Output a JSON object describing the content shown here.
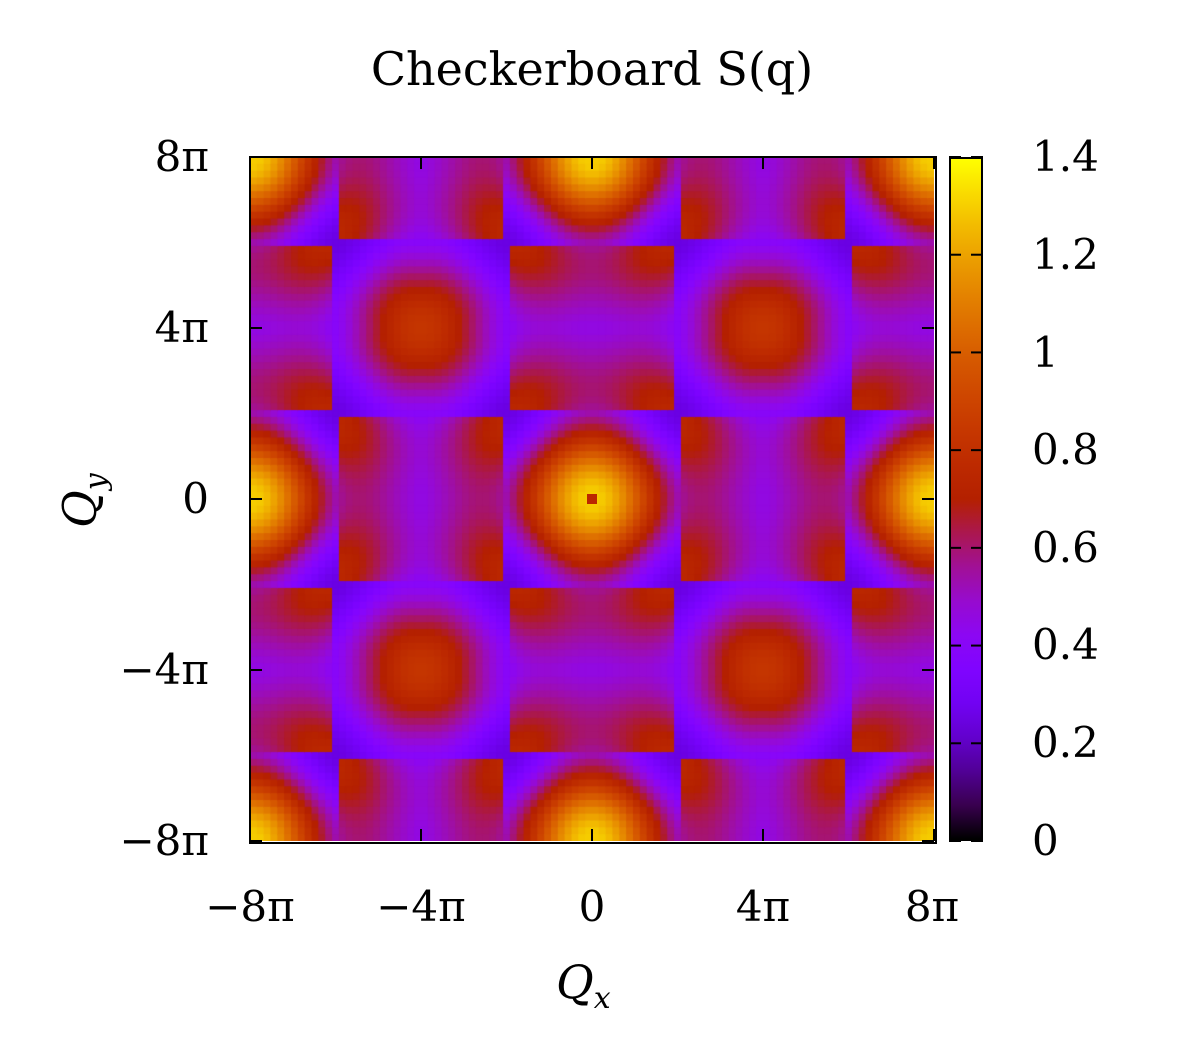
{
  "chart_data": {
    "type": "heatmap",
    "title": "Checkerboard S(q)",
    "xlabel": "Q",
    "xlabel_sub": "x",
    "ylabel": "Q",
    "ylabel_sub": "y",
    "x_range_units_of_pi": [
      -8,
      8
    ],
    "y_range_units_of_pi": [
      -8,
      8
    ],
    "x_tick_labels": [
      "−8π",
      "−4π",
      "0",
      "4π",
      "8π"
    ],
    "y_tick_labels": [
      "8π",
      "4π",
      "0",
      "−4π",
      "−8π"
    ],
    "x_tick_values_units_of_pi": [
      -8,
      -4,
      0,
      4,
      8
    ],
    "y_tick_values_units_of_pi": [
      8,
      4,
      0,
      -4,
      -8
    ],
    "colorbar": {
      "range": [
        0,
        1.4
      ],
      "tick_labels": [
        "1.4",
        "1.2",
        "1",
        "0.8",
        "0.6",
        "0.4",
        "0.2",
        "0"
      ],
      "tick_values": [
        1.4,
        1.2,
        1.0,
        0.8,
        0.6,
        0.4,
        0.2,
        0.0
      ],
      "colormap": "gnuplot (black-purple-red-orange-yellow)"
    },
    "grid_resolution": 100,
    "peak_value_approx": 1.3,
    "center_value": 0.75,
    "legend": "none"
  }
}
